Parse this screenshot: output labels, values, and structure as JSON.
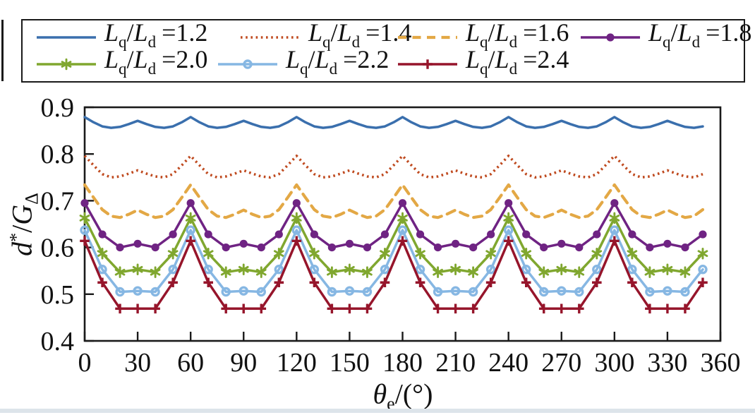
{
  "page": {
    "background": "#ffffff",
    "frame_color": "#1a1a1a"
  },
  "legend": {
    "parts": {
      "L1": "L",
      "sub1": "q",
      "slash": "/",
      "L2": "L",
      "sub2": "d",
      "eq": "="
    }
  },
  "axes": {
    "ylabel": {
      "base1": "d",
      "sup": "*",
      "slash": "/",
      "base2": "G",
      "sub": "Δ"
    },
    "xlabel": {
      "base": "θ",
      "sub": "e",
      "rest": "/(°)"
    }
  },
  "chart_data": {
    "type": "line",
    "title": "",
    "xlabel_text": "θe/(°)",
    "ylabel_text": "d*/GΔ",
    "xlim": [
      0,
      360
    ],
    "ylim": [
      0.4,
      0.9
    ],
    "grid": false,
    "legend_position": "top",
    "frame_color": "#1a1a1a",
    "x_ticks": [
      0,
      30,
      60,
      90,
      120,
      150,
      180,
      210,
      240,
      270,
      300,
      330,
      360
    ],
    "x_tick_labels": [
      "0",
      "30",
      "60",
      "90",
      "120",
      "150",
      "180",
      "210",
      "240",
      "270",
      "300",
      "330",
      "360"
    ],
    "y_ticks": [
      0.4,
      0.5,
      0.6,
      0.7,
      0.8,
      0.9
    ],
    "y_tick_labels": [
      "0.4",
      "0.5",
      "0.6",
      "0.7",
      "0.8",
      "0.9"
    ],
    "series": [
      {
        "label": "Lq/Ld =1.2",
        "value": "1.2",
        "color": "#3a6fad",
        "line": "solid",
        "marker": "none",
        "x_start": 0,
        "x_step": 5,
        "values": [
          0.879,
          0.868,
          0.859,
          0.856,
          0.858,
          0.864,
          0.871,
          0.864,
          0.858,
          0.856,
          0.859,
          0.868,
          0.879,
          0.868,
          0.859,
          0.856,
          0.858,
          0.864,
          0.871,
          0.864,
          0.858,
          0.856,
          0.859,
          0.868,
          0.879,
          0.868,
          0.859,
          0.856,
          0.858,
          0.864,
          0.871,
          0.864,
          0.858,
          0.856,
          0.859,
          0.868,
          0.879,
          0.868,
          0.859,
          0.856,
          0.858,
          0.864,
          0.871,
          0.864,
          0.858,
          0.856,
          0.859,
          0.868,
          0.879,
          0.868,
          0.859,
          0.856,
          0.858,
          0.864,
          0.871,
          0.864,
          0.858,
          0.856,
          0.859,
          0.868,
          0.879,
          0.868,
          0.859,
          0.856,
          0.858,
          0.864,
          0.871,
          0.864,
          0.858,
          0.856,
          0.859
        ]
      },
      {
        "label": "Lq/Ld =1.4",
        "value": "1.4",
        "color": "#bf4a1f",
        "line": "dotted",
        "marker": "none",
        "x_start": 0,
        "x_step": 5,
        "values": [
          0.796,
          0.776,
          0.757,
          0.75,
          0.752,
          0.758,
          0.765,
          0.758,
          0.752,
          0.75,
          0.757,
          0.776,
          0.796,
          0.776,
          0.757,
          0.75,
          0.752,
          0.758,
          0.765,
          0.758,
          0.752,
          0.75,
          0.757,
          0.776,
          0.796,
          0.776,
          0.757,
          0.75,
          0.752,
          0.758,
          0.765,
          0.758,
          0.752,
          0.75,
          0.757,
          0.776,
          0.796,
          0.776,
          0.757,
          0.75,
          0.752,
          0.758,
          0.765,
          0.758,
          0.752,
          0.75,
          0.757,
          0.776,
          0.796,
          0.776,
          0.757,
          0.75,
          0.752,
          0.758,
          0.765,
          0.758,
          0.752,
          0.75,
          0.757,
          0.776,
          0.796,
          0.776,
          0.757,
          0.75,
          0.752,
          0.758,
          0.765,
          0.758,
          0.752,
          0.75,
          0.757
        ]
      },
      {
        "label": "Lq/Ld =1.6",
        "value": "1.6",
        "color": "#e3a845",
        "line": "dashed",
        "marker": "none",
        "x_start": 0,
        "x_step": 5,
        "values": [
          0.734,
          0.707,
          0.681,
          0.667,
          0.664,
          0.671,
          0.68,
          0.671,
          0.664,
          0.667,
          0.681,
          0.707,
          0.734,
          0.707,
          0.681,
          0.667,
          0.664,
          0.671,
          0.68,
          0.671,
          0.664,
          0.667,
          0.681,
          0.707,
          0.734,
          0.707,
          0.681,
          0.667,
          0.664,
          0.671,
          0.68,
          0.671,
          0.664,
          0.667,
          0.681,
          0.707,
          0.734,
          0.707,
          0.681,
          0.667,
          0.664,
          0.671,
          0.68,
          0.671,
          0.664,
          0.667,
          0.681,
          0.707,
          0.734,
          0.707,
          0.681,
          0.667,
          0.664,
          0.671,
          0.68,
          0.671,
          0.664,
          0.667,
          0.681,
          0.707,
          0.734,
          0.707,
          0.681,
          0.667,
          0.664,
          0.671,
          0.68,
          0.671,
          0.664,
          0.667,
          0.681
        ]
      },
      {
        "label": "Lq/Ld =1.8",
        "value": "1.8",
        "color": "#6f2383",
        "line": "solid",
        "marker": "dot",
        "x_start": 0,
        "x_step": 10,
        "values": [
          0.695,
          0.628,
          0.6,
          0.608,
          0.6,
          0.628,
          0.695,
          0.628,
          0.6,
          0.608,
          0.6,
          0.628,
          0.695,
          0.628,
          0.6,
          0.608,
          0.6,
          0.628,
          0.695,
          0.628,
          0.6,
          0.608,
          0.6,
          0.628,
          0.695,
          0.628,
          0.6,
          0.608,
          0.6,
          0.628,
          0.695,
          0.628,
          0.6,
          0.608,
          0.6,
          0.628
        ]
      },
      {
        "label": "Lq/Ld =2.0",
        "value": "2.0",
        "color": "#80a72f",
        "line": "solid",
        "marker": "asterisk",
        "x_start": 0,
        "x_step": 10,
        "values": [
          0.663,
          0.587,
          0.547,
          0.553,
          0.547,
          0.587,
          0.663,
          0.587,
          0.547,
          0.553,
          0.547,
          0.587,
          0.663,
          0.587,
          0.547,
          0.553,
          0.547,
          0.587,
          0.663,
          0.587,
          0.547,
          0.553,
          0.547,
          0.587,
          0.663,
          0.587,
          0.547,
          0.553,
          0.547,
          0.587,
          0.663,
          0.587,
          0.547,
          0.553,
          0.547,
          0.587
        ]
      },
      {
        "label": "Lq/Ld =2.2",
        "value": "2.2",
        "color": "#86b7e3",
        "line": "solid",
        "marker": "circle",
        "x_start": 0,
        "x_step": 10,
        "values": [
          0.637,
          0.553,
          0.505,
          0.507,
          0.505,
          0.553,
          0.637,
          0.553,
          0.505,
          0.507,
          0.505,
          0.553,
          0.637,
          0.553,
          0.505,
          0.507,
          0.505,
          0.553,
          0.637,
          0.553,
          0.505,
          0.507,
          0.505,
          0.553,
          0.637,
          0.553,
          0.505,
          0.507,
          0.505,
          0.553,
          0.637,
          0.553,
          0.505,
          0.507,
          0.505,
          0.553
        ]
      },
      {
        "label": "Lq/Ld =2.4",
        "value": "2.4",
        "color": "#96152b",
        "line": "solid",
        "marker": "plus",
        "x_start": 0,
        "x_step": 10,
        "values": [
          0.614,
          0.525,
          0.469,
          0.469,
          0.469,
          0.525,
          0.614,
          0.525,
          0.469,
          0.469,
          0.469,
          0.525,
          0.614,
          0.525,
          0.469,
          0.469,
          0.469,
          0.525,
          0.614,
          0.525,
          0.469,
          0.469,
          0.469,
          0.525,
          0.614,
          0.525,
          0.469,
          0.469,
          0.469,
          0.525,
          0.614,
          0.525,
          0.469,
          0.469,
          0.469,
          0.525
        ]
      }
    ]
  }
}
